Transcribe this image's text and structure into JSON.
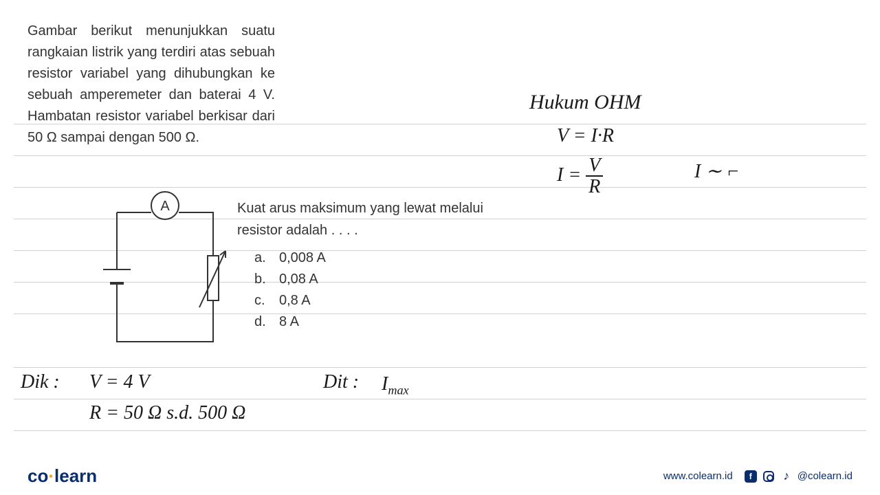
{
  "problem": {
    "text": "Gambar berikut menunjukkan suatu rangkaian listrik yang terdiri atas sebuah resistor variabel yang dihubungkan ke sebuah amperemeter dan baterai 4 V. Hambatan resistor variabel berkisar dari 50 Ω sampai dengan 500 Ω.",
    "prompt": "Kuat arus maksimum yang lewat melalui resistor adalah . . . .",
    "options": [
      {
        "letter": "a.",
        "value": "0,008 A"
      },
      {
        "letter": "b.",
        "value": "0,08 A"
      },
      {
        "letter": "c.",
        "value": "0,8 A"
      },
      {
        "letter": "d.",
        "value": "8 A"
      }
    ]
  },
  "circuit": {
    "ammeter_label": "A",
    "stroke": "#333333",
    "stroke_width": 2
  },
  "handwriting": {
    "title": "Hukum  OHM",
    "veq": "V = I·R",
    "ieq_left": "I =",
    "ieq_top": "V",
    "ieq_bot": "R",
    "iprop": "I ∼ ⌐",
    "dik_label": "Dik :",
    "dik_v": "V = 4 V",
    "dik_r": "R = 50 Ω  s.d.  500 Ω",
    "dit_label": "Dit :",
    "dit_val_main": "I",
    "dit_val_sub": "max",
    "color": "#1a1a1a"
  },
  "ruled_lines": {
    "color": "#d0d0d0",
    "positions": [
      180,
      226,
      272,
      318,
      364,
      410,
      456,
      534,
      580,
      626
    ]
  },
  "footer": {
    "logo_co": "co",
    "logo_learn": "learn",
    "url": "www.colearn.id",
    "handle": "@colearn.id",
    "color": "#0a2e6b"
  }
}
